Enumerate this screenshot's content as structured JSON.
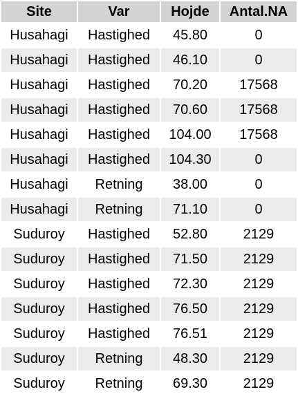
{
  "table": {
    "headers": [
      "Site",
      "Var",
      "Hojde",
      "Antal.NA"
    ],
    "rows": [
      [
        "Husahagi",
        "Hastighed",
        "45.80",
        "0"
      ],
      [
        "Husahagi",
        "Hastighed",
        "46.10",
        "0"
      ],
      [
        "Husahagi",
        "Hastighed",
        "70.20",
        "17568"
      ],
      [
        "Husahagi",
        "Hastighed",
        "70.60",
        "17568"
      ],
      [
        "Husahagi",
        "Hastighed",
        "104.00",
        "17568"
      ],
      [
        "Husahagi",
        "Hastighed",
        "104.30",
        "0"
      ],
      [
        "Husahagi",
        "Retning",
        "38.00",
        "0"
      ],
      [
        "Husahagi",
        "Retning",
        "71.10",
        "0"
      ],
      [
        "Suduroy",
        "Hastighed",
        "52.80",
        "2129"
      ],
      [
        "Suduroy",
        "Hastighed",
        "71.50",
        "2129"
      ],
      [
        "Suduroy",
        "Hastighed",
        "72.30",
        "2129"
      ],
      [
        "Suduroy",
        "Hastighed",
        "76.50",
        "2129"
      ],
      [
        "Suduroy",
        "Hastighed",
        "76.51",
        "2129"
      ],
      [
        "Suduroy",
        "Retning",
        "48.30",
        "2129"
      ],
      [
        "Suduroy",
        "Retning",
        "69.30",
        "2129"
      ]
    ]
  },
  "colors": {
    "header_bg": "#d3d3d3",
    "row_alt_bg": "#ebebeb",
    "row_bg": "#ffffff"
  }
}
